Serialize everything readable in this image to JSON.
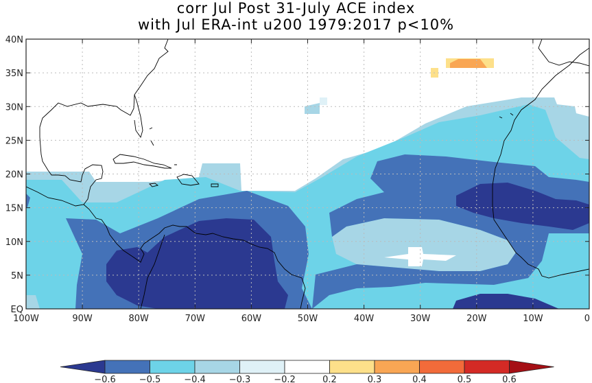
{
  "title": {
    "line1": "corr Jul Post 31-July ACE index",
    "line2": "with Jul ERA-int u200 1979:2017 p<10%"
  },
  "axes": {
    "lat_labels": [
      "EQ",
      "5N",
      "10N",
      "15N",
      "20N",
      "25N",
      "30N",
      "35N",
      "40N"
    ],
    "lon_labels": [
      "100W",
      "90W",
      "80W",
      "70W",
      "60W",
      "50W",
      "40W",
      "30W",
      "20W",
      "10W",
      "0"
    ],
    "lat_range": [
      0,
      40
    ],
    "lon_range": [
      -100,
      0
    ],
    "grid": "dotted"
  },
  "colorbar": {
    "labels": [
      "-0.6",
      "-0.5",
      "-0.4",
      "-0.3",
      "-0.2",
      "0.2",
      "0.3",
      "0.4",
      "0.5",
      "0.6"
    ],
    "colors": [
      "#2b3990",
      "#4472b8",
      "#6dd3e8",
      "#a7d6e6",
      "#dff1f7",
      "#ffffff",
      "#fde08a",
      "#f9a654",
      "#f26b3a",
      "#d42a25",
      "#a50f15"
    ]
  },
  "legend_colors": {
    "ocean_lowest": "#2b3990",
    "ocean_low": "#4472b8",
    "ocean_mid": "#6dd3e8",
    "ocean_light": "#a7d6e6",
    "ocean_pale": "#dff1f7",
    "pos_low": "#fde08a",
    "pos_mid": "#f9a654",
    "coast": "#000000"
  }
}
